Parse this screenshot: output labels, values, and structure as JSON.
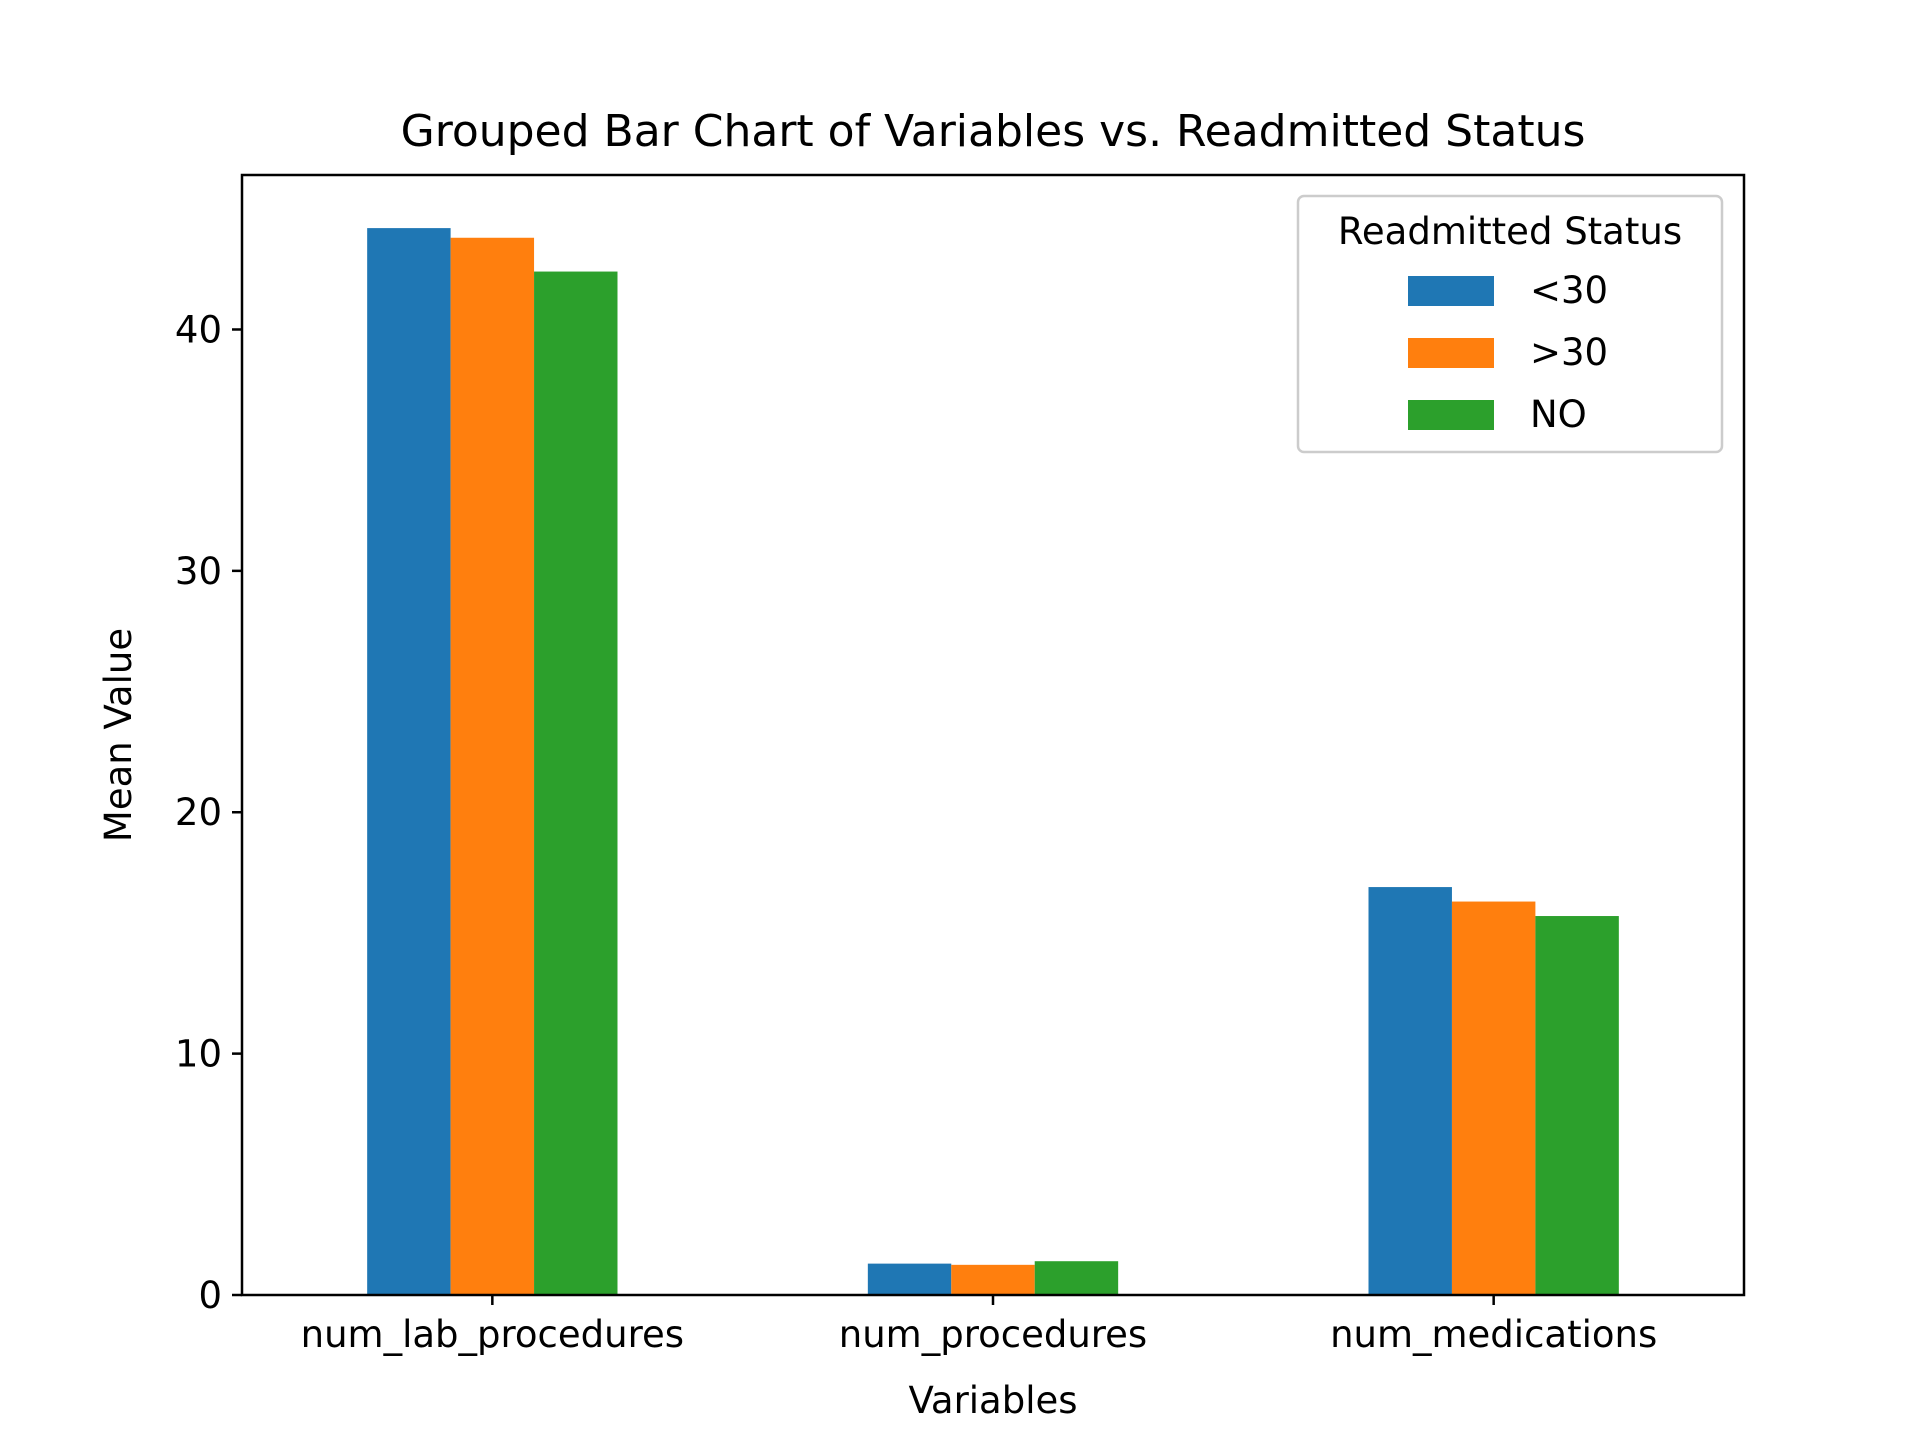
{
  "chart_data": {
    "type": "bar",
    "title": "Grouped Bar Chart of Variables vs. Readmitted Status",
    "xlabel": "Variables",
    "ylabel": "Mean Value",
    "categories": [
      "num_lab_procedures",
      "num_procedures",
      "num_medications"
    ],
    "series": [
      {
        "name": "<30",
        "color": "#1f77b4",
        "values": [
          44.2,
          1.3,
          16.9
        ]
      },
      {
        "name": ">30",
        "color": "#ff7f0e",
        "values": [
          43.8,
          1.25,
          16.3
        ]
      },
      {
        "name": "NO",
        "color": "#2ca02c",
        "values": [
          42.4,
          1.4,
          15.7
        ]
      }
    ],
    "ylim": [
      0,
      46.4
    ],
    "yticks": [
      0,
      10,
      20,
      30,
      40
    ],
    "legend": {
      "title": "Readmitted Status",
      "position": "top-right"
    },
    "grid": false
  }
}
